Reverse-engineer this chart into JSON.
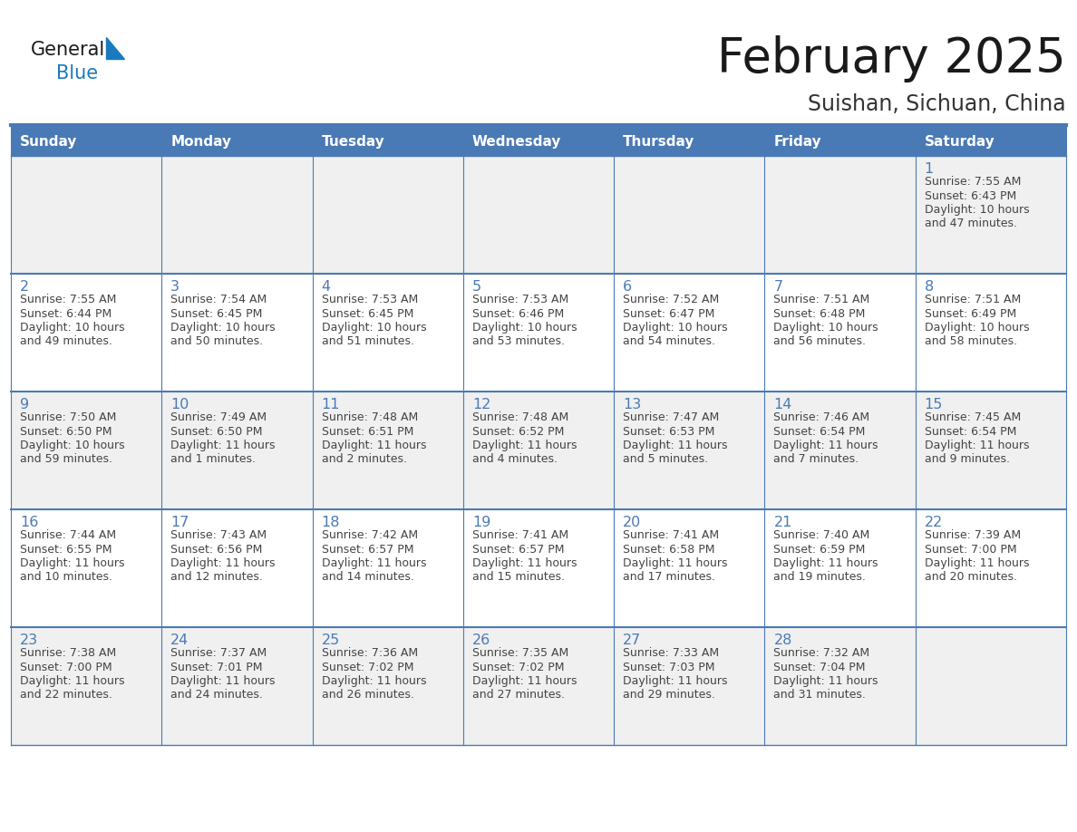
{
  "title": "February 2025",
  "subtitle": "Suishan, Sichuan, China",
  "days_of_week": [
    "Sunday",
    "Monday",
    "Tuesday",
    "Wednesday",
    "Thursday",
    "Friday",
    "Saturday"
  ],
  "header_bg_color": "#4a7ab5",
  "header_text_color": "#ffffff",
  "cell_bg_color_odd": "#f0f0f0",
  "cell_bg_color_even": "#ffffff",
  "day_number_color": "#4a7ab5",
  "info_text_color": "#444444",
  "border_color": "#4a7ab5",
  "title_color": "#1a1a1a",
  "subtitle_color": "#333333",
  "calendar_data": [
    {
      "day": 1,
      "col": 6,
      "row": 0,
      "sunrise": "7:55 AM",
      "sunset": "6:43 PM",
      "daylight_hours": 10,
      "daylight_minutes": 47
    },
    {
      "day": 2,
      "col": 0,
      "row": 1,
      "sunrise": "7:55 AM",
      "sunset": "6:44 PM",
      "daylight_hours": 10,
      "daylight_minutes": 49
    },
    {
      "day": 3,
      "col": 1,
      "row": 1,
      "sunrise": "7:54 AM",
      "sunset": "6:45 PM",
      "daylight_hours": 10,
      "daylight_minutes": 50
    },
    {
      "day": 4,
      "col": 2,
      "row": 1,
      "sunrise": "7:53 AM",
      "sunset": "6:45 PM",
      "daylight_hours": 10,
      "daylight_minutes": 51
    },
    {
      "day": 5,
      "col": 3,
      "row": 1,
      "sunrise": "7:53 AM",
      "sunset": "6:46 PM",
      "daylight_hours": 10,
      "daylight_minutes": 53
    },
    {
      "day": 6,
      "col": 4,
      "row": 1,
      "sunrise": "7:52 AM",
      "sunset": "6:47 PM",
      "daylight_hours": 10,
      "daylight_minutes": 54
    },
    {
      "day": 7,
      "col": 5,
      "row": 1,
      "sunrise": "7:51 AM",
      "sunset": "6:48 PM",
      "daylight_hours": 10,
      "daylight_minutes": 56
    },
    {
      "day": 8,
      "col": 6,
      "row": 1,
      "sunrise": "7:51 AM",
      "sunset": "6:49 PM",
      "daylight_hours": 10,
      "daylight_minutes": 58
    },
    {
      "day": 9,
      "col": 0,
      "row": 2,
      "sunrise": "7:50 AM",
      "sunset": "6:50 PM",
      "daylight_hours": 10,
      "daylight_minutes": 59
    },
    {
      "day": 10,
      "col": 1,
      "row": 2,
      "sunrise": "7:49 AM",
      "sunset": "6:50 PM",
      "daylight_hours": 11,
      "daylight_minutes": 1
    },
    {
      "day": 11,
      "col": 2,
      "row": 2,
      "sunrise": "7:48 AM",
      "sunset": "6:51 PM",
      "daylight_hours": 11,
      "daylight_minutes": 2
    },
    {
      "day": 12,
      "col": 3,
      "row": 2,
      "sunrise": "7:48 AM",
      "sunset": "6:52 PM",
      "daylight_hours": 11,
      "daylight_minutes": 4
    },
    {
      "day": 13,
      "col": 4,
      "row": 2,
      "sunrise": "7:47 AM",
      "sunset": "6:53 PM",
      "daylight_hours": 11,
      "daylight_minutes": 5
    },
    {
      "day": 14,
      "col": 5,
      "row": 2,
      "sunrise": "7:46 AM",
      "sunset": "6:54 PM",
      "daylight_hours": 11,
      "daylight_minutes": 7
    },
    {
      "day": 15,
      "col": 6,
      "row": 2,
      "sunrise": "7:45 AM",
      "sunset": "6:54 PM",
      "daylight_hours": 11,
      "daylight_minutes": 9
    },
    {
      "day": 16,
      "col": 0,
      "row": 3,
      "sunrise": "7:44 AM",
      "sunset": "6:55 PM",
      "daylight_hours": 11,
      "daylight_minutes": 10
    },
    {
      "day": 17,
      "col": 1,
      "row": 3,
      "sunrise": "7:43 AM",
      "sunset": "6:56 PM",
      "daylight_hours": 11,
      "daylight_minutes": 12
    },
    {
      "day": 18,
      "col": 2,
      "row": 3,
      "sunrise": "7:42 AM",
      "sunset": "6:57 PM",
      "daylight_hours": 11,
      "daylight_minutes": 14
    },
    {
      "day": 19,
      "col": 3,
      "row": 3,
      "sunrise": "7:41 AM",
      "sunset": "6:57 PM",
      "daylight_hours": 11,
      "daylight_minutes": 15
    },
    {
      "day": 20,
      "col": 4,
      "row": 3,
      "sunrise": "7:41 AM",
      "sunset": "6:58 PM",
      "daylight_hours": 11,
      "daylight_minutes": 17
    },
    {
      "day": 21,
      "col": 5,
      "row": 3,
      "sunrise": "7:40 AM",
      "sunset": "6:59 PM",
      "daylight_hours": 11,
      "daylight_minutes": 19
    },
    {
      "day": 22,
      "col": 6,
      "row": 3,
      "sunrise": "7:39 AM",
      "sunset": "7:00 PM",
      "daylight_hours": 11,
      "daylight_minutes": 20
    },
    {
      "day": 23,
      "col": 0,
      "row": 4,
      "sunrise": "7:38 AM",
      "sunset": "7:00 PM",
      "daylight_hours": 11,
      "daylight_minutes": 22
    },
    {
      "day": 24,
      "col": 1,
      "row": 4,
      "sunrise": "7:37 AM",
      "sunset": "7:01 PM",
      "daylight_hours": 11,
      "daylight_minutes": 24
    },
    {
      "day": 25,
      "col": 2,
      "row": 4,
      "sunrise": "7:36 AM",
      "sunset": "7:02 PM",
      "daylight_hours": 11,
      "daylight_minutes": 26
    },
    {
      "day": 26,
      "col": 3,
      "row": 4,
      "sunrise": "7:35 AM",
      "sunset": "7:02 PM",
      "daylight_hours": 11,
      "daylight_minutes": 27
    },
    {
      "day": 27,
      "col": 4,
      "row": 4,
      "sunrise": "7:33 AM",
      "sunset": "7:03 PM",
      "daylight_hours": 11,
      "daylight_minutes": 29
    },
    {
      "day": 28,
      "col": 5,
      "row": 4,
      "sunrise": "7:32 AM",
      "sunset": "7:04 PM",
      "daylight_hours": 11,
      "daylight_minutes": 31
    }
  ],
  "logo_text_general": "General",
  "logo_text_blue": "Blue",
  "logo_color_general": "#1a1a1a",
  "logo_color_blue": "#1a7abf",
  "logo_triangle_color": "#1a7abf",
  "n_rows": 5,
  "n_cols": 7
}
